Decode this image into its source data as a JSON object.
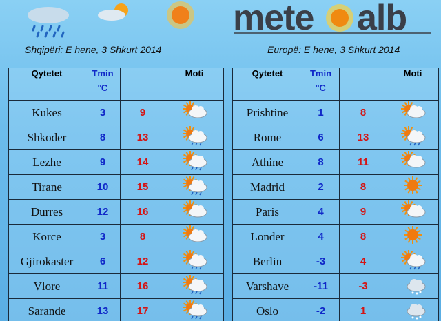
{
  "logo": {
    "left": "mete",
    "right": "alb"
  },
  "left": {
    "subtitle": "Shqipëri: E hene, 3 Shkurt 2014",
    "header": {
      "city": "Qytetet",
      "tmin": "Tmin",
      "unit": "°C",
      "moti": "Moti"
    },
    "rows": [
      [
        "Kukes",
        3,
        9
      ],
      [
        "Shkoder",
        8,
        13
      ],
      [
        "Lezhe",
        9,
        14
      ],
      [
        "Tirane",
        10,
        15
      ],
      [
        "Durres",
        12,
        16
      ],
      [
        "Korce",
        3,
        8
      ],
      [
        "Gjirokaster",
        6,
        12
      ],
      [
        "Vlore",
        11,
        16
      ],
      [
        "Sarande",
        13,
        17
      ]
    ]
  },
  "right": {
    "subtitle": "Europë: E hene, 3 Shkurt 2014",
    "header": {
      "city": "Qytetet",
      "tmin": "Tmin",
      "unit": "°C",
      "moti": "Moti"
    },
    "rows": [
      [
        "Prishtine",
        1,
        8
      ],
      [
        "Rome",
        6,
        13
      ],
      [
        "Athine",
        8,
        11
      ],
      [
        "Madrid",
        2,
        8
      ],
      [
        "Paris",
        4,
        9
      ],
      [
        "Londer",
        4,
        8
      ],
      [
        "Berlin",
        -3,
        4
      ],
      [
        "Varshave",
        -11,
        -3
      ],
      [
        "Oslo",
        -2,
        1
      ]
    ]
  }
}
